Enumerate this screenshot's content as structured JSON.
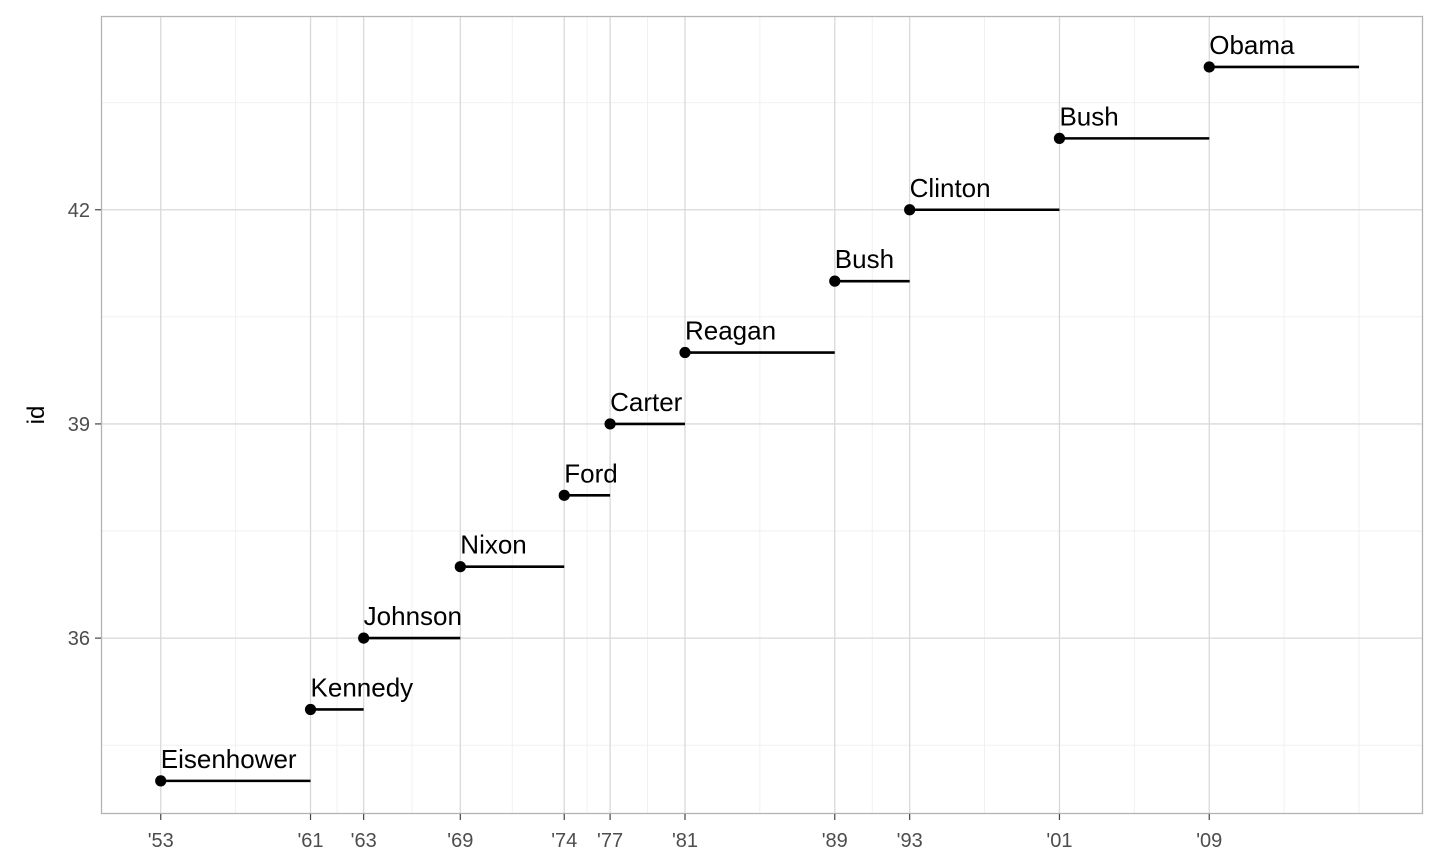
{
  "chart_data": {
    "type": "segment",
    "ylabel": "id",
    "xlabel": "",
    "x_ticks": [
      {
        "value": "1953-01-20",
        "label": "'53"
      },
      {
        "value": "1961-01-20",
        "label": "'61"
      },
      {
        "value": "1963-11-22",
        "label": "'63"
      },
      {
        "value": "1969-01-20",
        "label": "'69"
      },
      {
        "value": "1974-08-09",
        "label": "'74"
      },
      {
        "value": "1977-01-20",
        "label": "'77"
      },
      {
        "value": "1981-01-20",
        "label": "'81"
      },
      {
        "value": "1989-01-20",
        "label": "'89"
      },
      {
        "value": "1993-01-20",
        "label": "'93"
      },
      {
        "value": "2001-01-20",
        "label": "'01"
      },
      {
        "value": "2009-01-20",
        "label": "'09"
      }
    ],
    "y_ticks": [
      36,
      39,
      42
    ],
    "xlim": [
      "1949-12-01",
      "2020-06-01"
    ],
    "ylim": [
      33.55,
      44.7
    ],
    "grid": true,
    "terms": [
      {
        "name": "Eisenhower",
        "id": 34,
        "start": "1953-01-20",
        "end": "1961-01-20"
      },
      {
        "name": "Kennedy",
        "id": 35,
        "start": "1961-01-20",
        "end": "1963-11-22"
      },
      {
        "name": "Johnson",
        "id": 36,
        "start": "1963-11-22",
        "end": "1969-01-20"
      },
      {
        "name": "Nixon",
        "id": 37,
        "start": "1969-01-20",
        "end": "1974-08-09"
      },
      {
        "name": "Ford",
        "id": 38,
        "start": "1974-08-09",
        "end": "1977-01-20"
      },
      {
        "name": "Carter",
        "id": 39,
        "start": "1977-01-20",
        "end": "1981-01-20"
      },
      {
        "name": "Reagan",
        "id": 40,
        "start": "1981-01-20",
        "end": "1989-01-20"
      },
      {
        "name": "Bush",
        "id": 41,
        "start": "1989-01-20",
        "end": "1993-01-20"
      },
      {
        "name": "Clinton",
        "id": 42,
        "start": "1993-01-20",
        "end": "2001-01-20"
      },
      {
        "name": "Bush",
        "id": 43,
        "start": "2001-01-20",
        "end": "2009-01-20"
      },
      {
        "name": "Obama",
        "id": 44,
        "start": "2009-01-20",
        "end": "2017-01-20"
      }
    ],
    "colors": {
      "segment": "#000000",
      "grid_major": "#d9d9d9",
      "grid_minor": "#efefef",
      "border": "#b3b3b3",
      "tick_label": "#4d4d4d"
    }
  }
}
